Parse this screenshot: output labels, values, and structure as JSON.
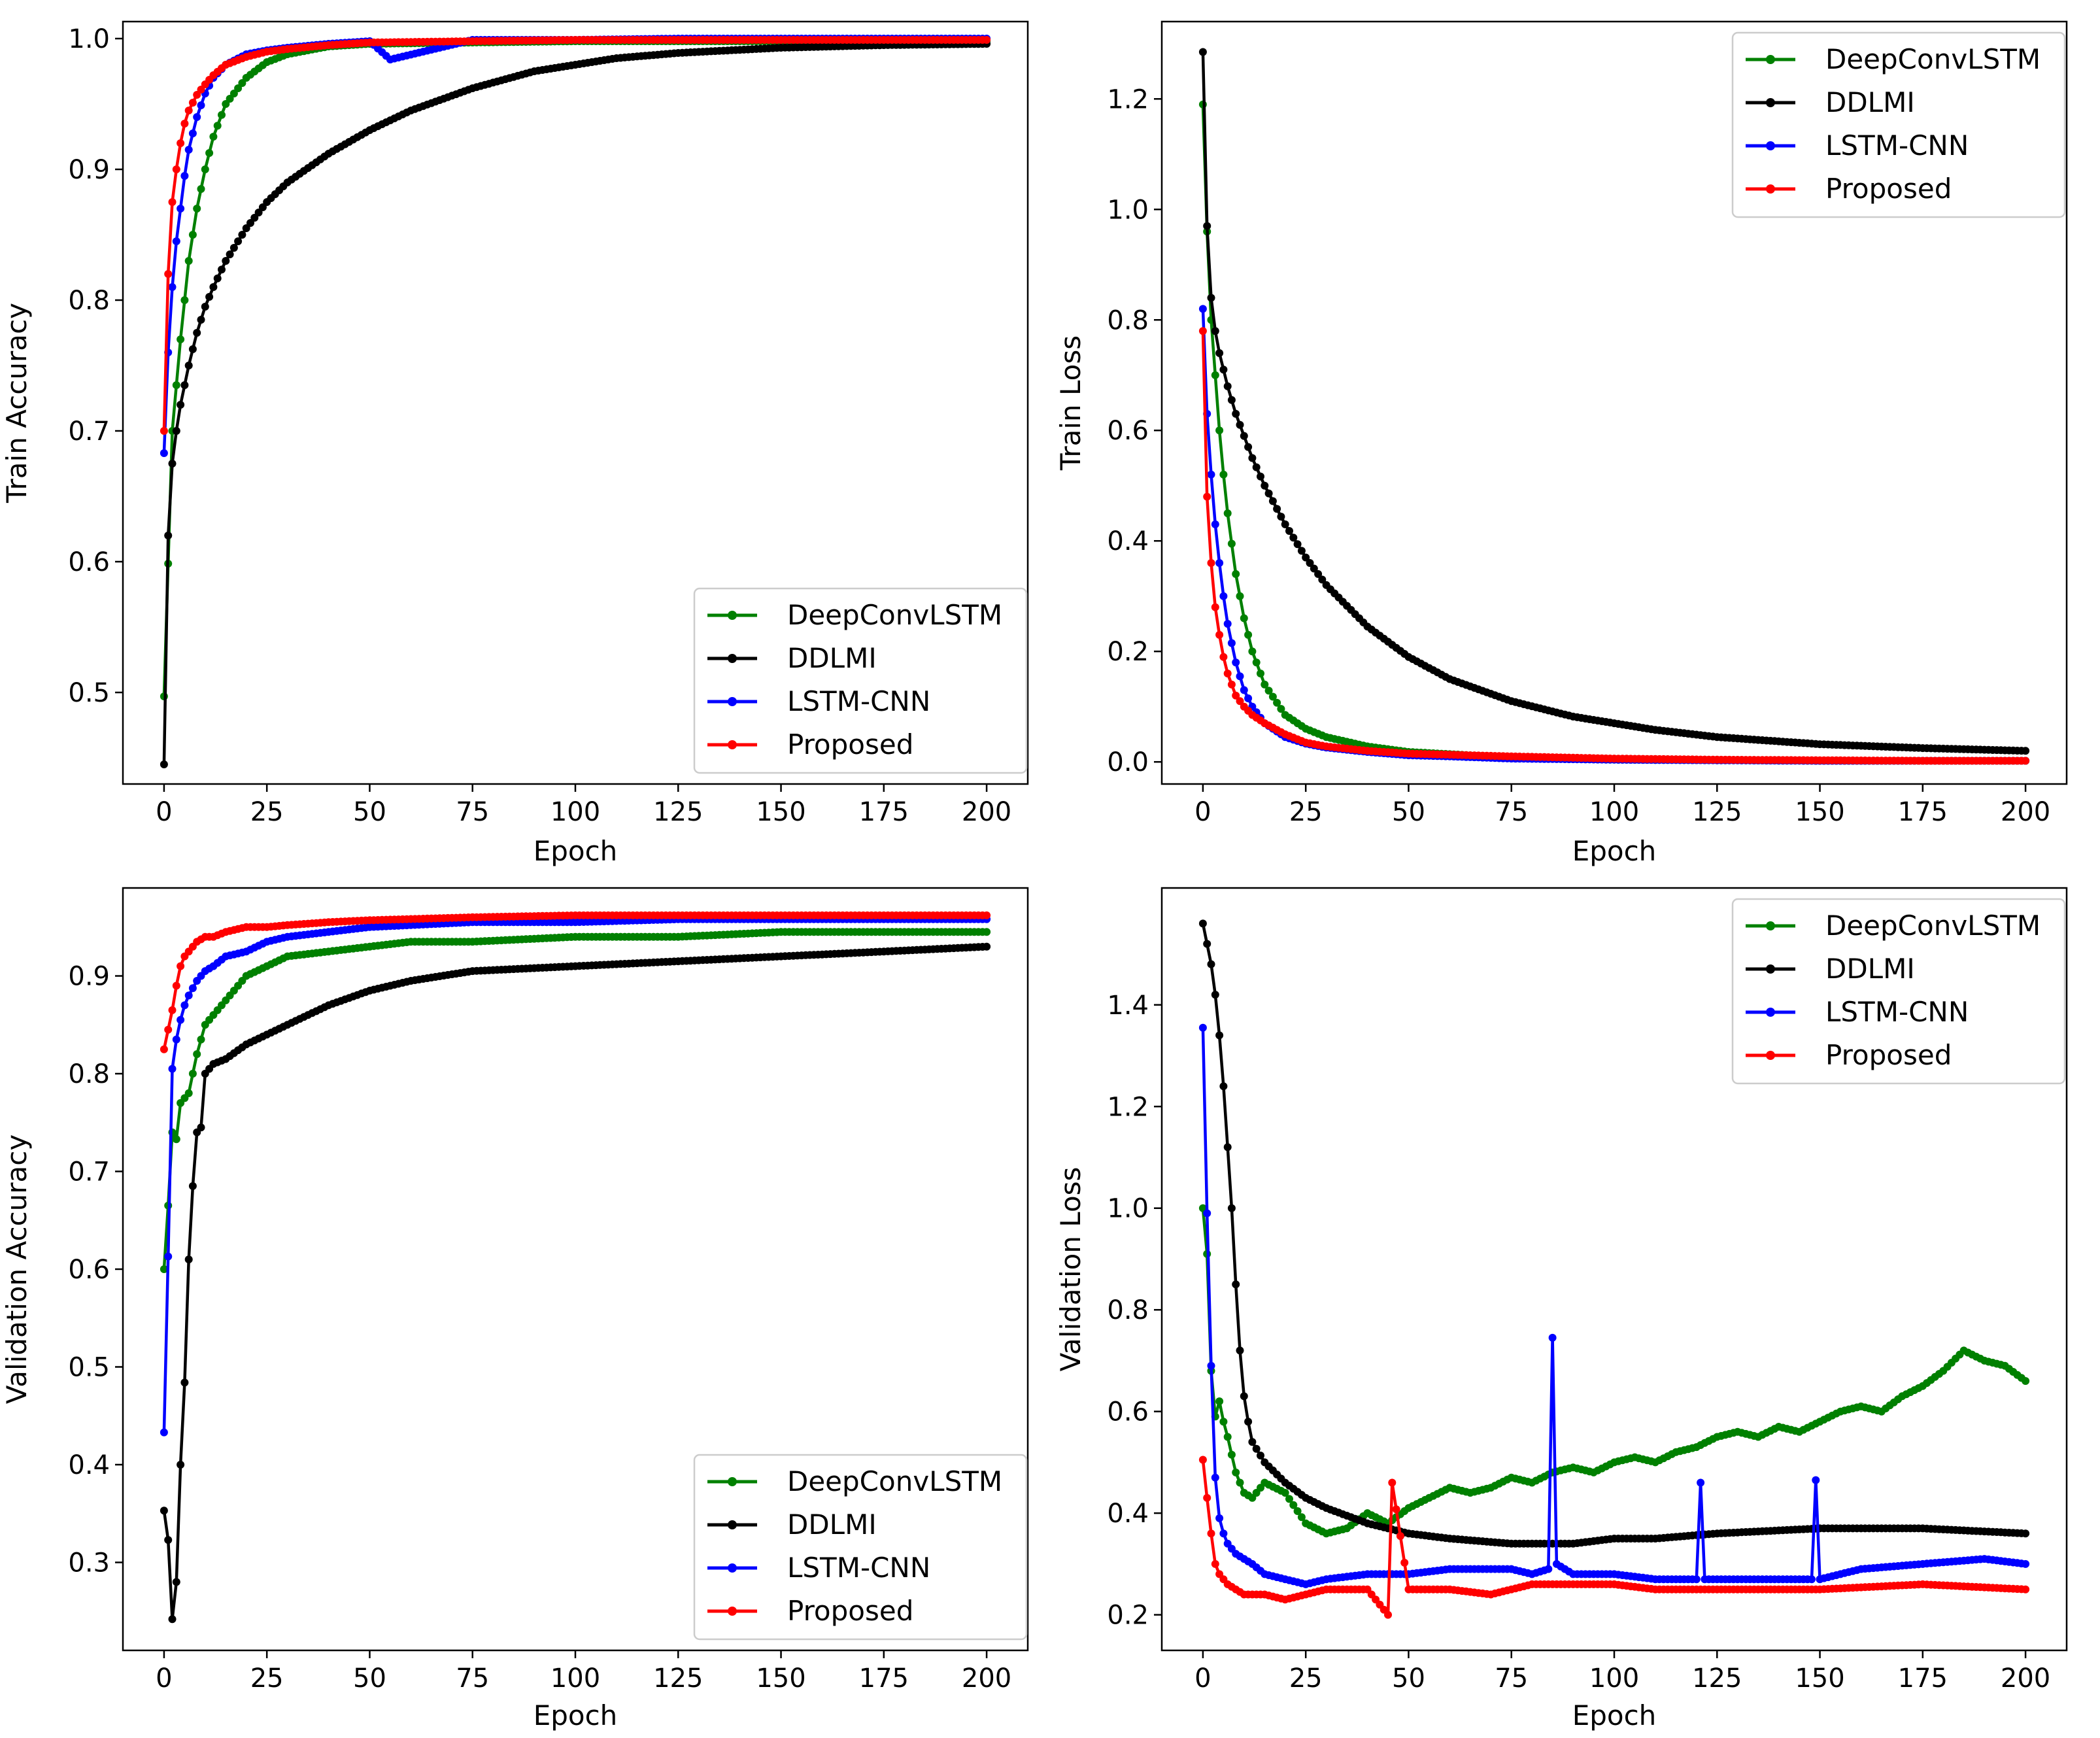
{
  "figure": {
    "legend_title": "",
    "xlabel": "Epoch",
    "xticks": [
      "0",
      "25",
      "50",
      "75",
      "100",
      "125",
      "150",
      "175",
      "200"
    ]
  },
  "colors": {
    "DeepConvLSTM": "#008000",
    "DDLMI": "#000000",
    "LSTM-CNN": "#0000ff",
    "Proposed": "#ff0000"
  },
  "chart_data": [
    {
      "type": "line",
      "id": "train-accuracy",
      "title": "",
      "xlabel": "Epoch",
      "ylabel": "Train Accuracy",
      "xlim": [
        -10,
        210
      ],
      "ylim": [
        0.43,
        1.013
      ],
      "yticks": [
        "0.5",
        "0.6",
        "0.7",
        "0.8",
        "0.9",
        "1.0"
      ],
      "ytick_values": [
        0.5,
        0.6,
        0.7,
        0.8,
        0.9,
        1.0
      ],
      "legend": [
        "DeepConvLSTM",
        "DDLMI",
        "LSTM-CNN",
        "Proposed"
      ],
      "legend_position": "lower-right",
      "series": [
        {
          "name": "DeepConvLSTM",
          "x": [
            0,
            2,
            4,
            6,
            8,
            10,
            12,
            15,
            20,
            25,
            30,
            40,
            50,
            75,
            100,
            125,
            150,
            175,
            200
          ],
          "values": [
            0.497,
            0.7,
            0.77,
            0.83,
            0.87,
            0.9,
            0.925,
            0.95,
            0.97,
            0.982,
            0.988,
            0.994,
            0.996,
            0.997,
            0.998,
            0.998,
            0.998,
            0.998,
            0.998
          ]
        },
        {
          "name": "DDLMI",
          "x": [
            0,
            1,
            2,
            3,
            4,
            5,
            6,
            8,
            10,
            12,
            15,
            20,
            25,
            30,
            40,
            50,
            60,
            75,
            90,
            100,
            110,
            125,
            150,
            175,
            200
          ],
          "values": [
            0.445,
            0.62,
            0.675,
            0.7,
            0.72,
            0.735,
            0.75,
            0.775,
            0.795,
            0.81,
            0.83,
            0.855,
            0.875,
            0.89,
            0.912,
            0.93,
            0.945,
            0.962,
            0.975,
            0.98,
            0.985,
            0.989,
            0.993,
            0.995,
            0.996
          ]
        },
        {
          "name": "LSTM-CNN",
          "x": [
            0,
            1,
            2,
            3,
            4,
            5,
            6,
            8,
            10,
            12,
            15,
            20,
            25,
            30,
            40,
            50,
            55,
            75,
            100,
            125,
            150,
            175,
            200
          ],
          "values": [
            0.683,
            0.76,
            0.81,
            0.845,
            0.87,
            0.895,
            0.915,
            0.94,
            0.958,
            0.97,
            0.98,
            0.988,
            0.991,
            0.993,
            0.996,
            0.998,
            0.984,
            0.999,
            0.999,
            1.0,
            1.0,
            1.0,
            1.0
          ]
        },
        {
          "name": "Proposed",
          "x": [
            0,
            1,
            2,
            3,
            4,
            5,
            6,
            8,
            10,
            12,
            15,
            20,
            25,
            30,
            40,
            50,
            75,
            100,
            125,
            150,
            175,
            200
          ],
          "values": [
            0.7,
            0.82,
            0.875,
            0.9,
            0.92,
            0.935,
            0.945,
            0.957,
            0.965,
            0.972,
            0.98,
            0.986,
            0.99,
            0.992,
            0.995,
            0.997,
            0.998,
            0.999,
            0.999,
            0.999,
            0.999,
            0.999
          ]
        }
      ]
    },
    {
      "type": "line",
      "id": "train-loss",
      "title": "",
      "xlabel": "Epoch",
      "ylabel": "Train Loss",
      "xlim": [
        -10,
        210
      ],
      "ylim": [
        -0.04,
        1.34
      ],
      "yticks": [
        "0.0",
        "0.2",
        "0.4",
        "0.6",
        "0.8",
        "1.0",
        "1.2"
      ],
      "ytick_values": [
        0.0,
        0.2,
        0.4,
        0.6,
        0.8,
        1.0,
        1.2
      ],
      "legend": [
        "DeepConvLSTM",
        "DDLMI",
        "LSTM-CNN",
        "Proposed"
      ],
      "legend_position": "upper-right",
      "series": [
        {
          "name": "DeepConvLSTM",
          "x": [
            0,
            1,
            2,
            3,
            4,
            5,
            6,
            8,
            10,
            12,
            15,
            20,
            25,
            30,
            40,
            50,
            75,
            100,
            125,
            150,
            175,
            200
          ],
          "values": [
            1.19,
            0.96,
            0.8,
            0.7,
            0.6,
            0.52,
            0.45,
            0.34,
            0.26,
            0.2,
            0.14,
            0.085,
            0.06,
            0.045,
            0.028,
            0.018,
            0.008,
            0.004,
            0.003,
            0.002,
            0.002,
            0.002
          ]
        },
        {
          "name": "DDLMI",
          "x": [
            0,
            1,
            2,
            3,
            4,
            5,
            6,
            8,
            10,
            12,
            15,
            20,
            25,
            30,
            40,
            50,
            60,
            75,
            90,
            100,
            110,
            125,
            150,
            175,
            200
          ],
          "values": [
            1.285,
            0.97,
            0.84,
            0.78,
            0.74,
            0.71,
            0.68,
            0.63,
            0.59,
            0.55,
            0.5,
            0.43,
            0.37,
            0.32,
            0.245,
            0.19,
            0.15,
            0.11,
            0.082,
            0.07,
            0.058,
            0.045,
            0.032,
            0.025,
            0.02
          ]
        },
        {
          "name": "LSTM-CNN",
          "x": [
            0,
            1,
            2,
            3,
            4,
            5,
            6,
            8,
            10,
            12,
            15,
            20,
            25,
            30,
            40,
            50,
            60,
            75,
            100,
            125,
            150,
            175,
            200
          ],
          "values": [
            0.82,
            0.63,
            0.52,
            0.43,
            0.36,
            0.3,
            0.25,
            0.18,
            0.13,
            0.1,
            0.07,
            0.045,
            0.033,
            0.026,
            0.018,
            0.012,
            0.01,
            0.006,
            0.004,
            0.003,
            0.002,
            0.002,
            0.002
          ]
        },
        {
          "name": "Proposed",
          "x": [
            0,
            1,
            2,
            3,
            4,
            5,
            6,
            8,
            10,
            12,
            15,
            20,
            25,
            30,
            40,
            50,
            75,
            100,
            125,
            150,
            175,
            200
          ],
          "values": [
            0.78,
            0.48,
            0.36,
            0.28,
            0.23,
            0.19,
            0.16,
            0.12,
            0.1,
            0.085,
            0.07,
            0.05,
            0.035,
            0.028,
            0.02,
            0.015,
            0.01,
            0.006,
            0.004,
            0.003,
            0.002,
            0.002
          ]
        }
      ]
    },
    {
      "type": "line",
      "id": "validation-accuracy",
      "title": "",
      "xlabel": "Epoch",
      "ylabel": "Validation Accuracy",
      "xlim": [
        -10,
        210
      ],
      "ylim": [
        0.21,
        0.99
      ],
      "yticks": [
        "0.3",
        "0.4",
        "0.5",
        "0.6",
        "0.7",
        "0.8",
        "0.9"
      ],
      "ytick_values": [
        0.3,
        0.4,
        0.5,
        0.6,
        0.7,
        0.8,
        0.9
      ],
      "legend": [
        "DeepConvLSTM",
        "DDLMI",
        "LSTM-CNN",
        "Proposed"
      ],
      "legend_position": "lower-right",
      "series": [
        {
          "name": "DeepConvLSTM",
          "x": [
            0,
            1,
            2,
            3,
            4,
            5,
            6,
            8,
            10,
            12,
            15,
            20,
            25,
            30,
            40,
            50,
            60,
            75,
            100,
            125,
            150,
            175,
            200
          ],
          "values": [
            0.6,
            0.665,
            0.74,
            0.733,
            0.77,
            0.775,
            0.78,
            0.82,
            0.85,
            0.86,
            0.875,
            0.9,
            0.91,
            0.92,
            0.925,
            0.93,
            0.935,
            0.935,
            0.94,
            0.94,
            0.945,
            0.945,
            0.945
          ]
        },
        {
          "name": "DDLMI",
          "x": [
            0,
            1,
            2,
            3,
            4,
            5,
            6,
            7,
            8,
            9,
            10,
            12,
            15,
            20,
            25,
            30,
            40,
            50,
            60,
            75,
            100,
            125,
            150,
            175,
            200
          ],
          "values": [
            0.353,
            0.323,
            0.242,
            0.28,
            0.4,
            0.484,
            0.61,
            0.685,
            0.74,
            0.745,
            0.8,
            0.81,
            0.815,
            0.83,
            0.84,
            0.85,
            0.87,
            0.885,
            0.895,
            0.905,
            0.91,
            0.915,
            0.92,
            0.925,
            0.93
          ]
        },
        {
          "name": "LSTM-CNN",
          "x": [
            0,
            1,
            2,
            3,
            4,
            5,
            6,
            8,
            10,
            12,
            15,
            20,
            25,
            30,
            40,
            50,
            75,
            100,
            125,
            150,
            175,
            200
          ],
          "values": [
            0.433,
            0.613,
            0.805,
            0.835,
            0.855,
            0.87,
            0.88,
            0.895,
            0.905,
            0.91,
            0.92,
            0.925,
            0.935,
            0.94,
            0.945,
            0.95,
            0.955,
            0.955,
            0.958,
            0.958,
            0.958,
            0.958
          ]
        },
        {
          "name": "Proposed",
          "x": [
            0,
            1,
            2,
            3,
            4,
            5,
            6,
            8,
            10,
            12,
            15,
            20,
            25,
            30,
            40,
            50,
            75,
            100,
            125,
            150,
            175,
            200
          ],
          "values": [
            0.825,
            0.845,
            0.865,
            0.89,
            0.91,
            0.92,
            0.925,
            0.935,
            0.94,
            0.94,
            0.945,
            0.95,
            0.95,
            0.952,
            0.955,
            0.957,
            0.96,
            0.962,
            0.962,
            0.962,
            0.962,
            0.962
          ]
        }
      ]
    },
    {
      "type": "line",
      "id": "validation-loss",
      "title": "",
      "xlabel": "Epoch",
      "ylabel": "Validation Loss",
      "xlim": [
        -10,
        210
      ],
      "ylim": [
        0.13,
        1.63
      ],
      "yticks": [
        "0.2",
        "0.4",
        "0.6",
        "0.8",
        "1.0",
        "1.2",
        "1.4"
      ],
      "ytick_values": [
        0.2,
        0.4,
        0.6,
        0.8,
        1.0,
        1.2,
        1.4
      ],
      "legend": [
        "DeepConvLSTM",
        "DDLMI",
        "LSTM-CNN",
        "Proposed"
      ],
      "legend_position": "upper-right",
      "series": [
        {
          "name": "DeepConvLSTM",
          "x": [
            0,
            1,
            2,
            3,
            4,
            5,
            6,
            8,
            10,
            12,
            15,
            20,
            25,
            30,
            35,
            40,
            45,
            50,
            55,
            60,
            65,
            70,
            75,
            80,
            85,
            90,
            95,
            100,
            105,
            110,
            115,
            120,
            125,
            130,
            135,
            140,
            145,
            150,
            155,
            160,
            165,
            170,
            175,
            180,
            185,
            190,
            195,
            200
          ],
          "values": [
            1.0,
            0.91,
            0.68,
            0.59,
            0.62,
            0.58,
            0.55,
            0.48,
            0.44,
            0.43,
            0.46,
            0.44,
            0.38,
            0.36,
            0.37,
            0.4,
            0.38,
            0.41,
            0.43,
            0.45,
            0.44,
            0.45,
            0.47,
            0.46,
            0.48,
            0.49,
            0.48,
            0.5,
            0.51,
            0.5,
            0.52,
            0.53,
            0.55,
            0.56,
            0.55,
            0.57,
            0.56,
            0.58,
            0.6,
            0.61,
            0.6,
            0.63,
            0.65,
            0.68,
            0.72,
            0.7,
            0.69,
            0.66
          ]
        },
        {
          "name": "DDLMI",
          "x": [
            0,
            1,
            2,
            3,
            4,
            5,
            6,
            7,
            8,
            9,
            10,
            11,
            12,
            15,
            20,
            25,
            30,
            40,
            50,
            60,
            75,
            90,
            100,
            110,
            125,
            150,
            175,
            200
          ],
          "values": [
            1.56,
            1.52,
            1.48,
            1.42,
            1.34,
            1.24,
            1.12,
            1.0,
            0.85,
            0.72,
            0.63,
            0.58,
            0.54,
            0.5,
            0.46,
            0.43,
            0.41,
            0.38,
            0.36,
            0.35,
            0.34,
            0.34,
            0.35,
            0.35,
            0.36,
            0.37,
            0.37,
            0.36
          ]
        },
        {
          "name": "LSTM-CNN",
          "x": [
            0,
            1,
            2,
            3,
            4,
            5,
            6,
            8,
            10,
            12,
            15,
            20,
            25,
            30,
            40,
            50,
            60,
            70,
            75,
            80,
            84,
            85,
            86,
            90,
            100,
            110,
            120,
            121,
            122,
            125,
            140,
            148,
            149,
            150,
            160,
            175,
            190,
            200
          ],
          "values": [
            1.355,
            0.99,
            0.69,
            0.47,
            0.39,
            0.36,
            0.34,
            0.32,
            0.31,
            0.3,
            0.28,
            0.27,
            0.26,
            0.27,
            0.28,
            0.28,
            0.29,
            0.29,
            0.29,
            0.28,
            0.29,
            0.745,
            0.3,
            0.28,
            0.28,
            0.27,
            0.27,
            0.46,
            0.27,
            0.27,
            0.27,
            0.27,
            0.465,
            0.27,
            0.29,
            0.3,
            0.31,
            0.3
          ]
        },
        {
          "name": "Proposed",
          "x": [
            0,
            1,
            2,
            3,
            4,
            5,
            6,
            8,
            10,
            12,
            15,
            20,
            25,
            30,
            40,
            45,
            46,
            50,
            60,
            70,
            75,
            80,
            90,
            100,
            110,
            125,
            150,
            175,
            200
          ],
          "values": [
            0.505,
            0.43,
            0.36,
            0.3,
            0.28,
            0.27,
            0.26,
            0.25,
            0.24,
            0.24,
            0.24,
            0.23,
            0.24,
            0.25,
            0.25,
            0.2,
            0.46,
            0.25,
            0.25,
            0.24,
            0.25,
            0.26,
            0.26,
            0.26,
            0.25,
            0.25,
            0.25,
            0.26,
            0.25
          ]
        }
      ]
    }
  ]
}
